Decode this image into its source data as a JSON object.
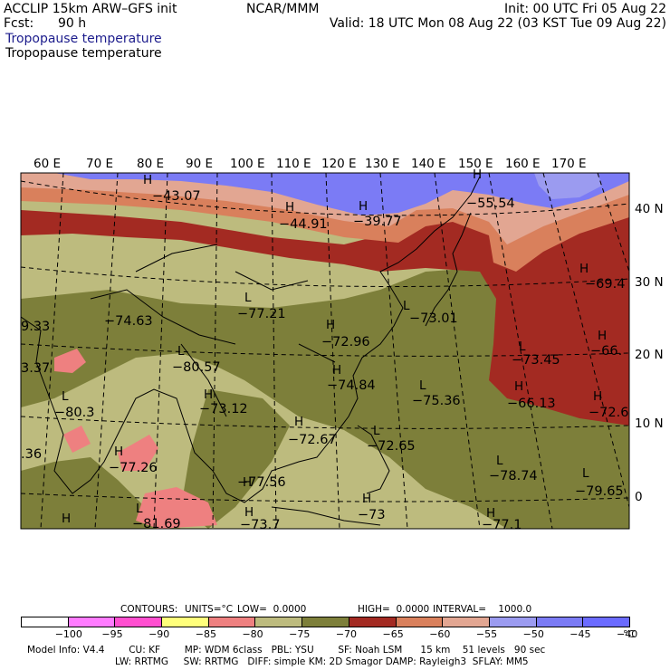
{
  "header": {
    "title_left": "ACCLIP 15km ARW–GFS init",
    "fcst_label": "Fcst:",
    "fcst_value": "90 h",
    "center": "NCAR/MMM",
    "init": "Init: 00 UTC Fri 05 Aug 22",
    "valid": "Valid: 18 UTC Mon 08 Aug 22 (03 KST Tue 09 Aug 22)",
    "field_title_1": "Tropopause temperature",
    "field_title_2": "Tropopause temperature"
  },
  "map": {
    "lon_labels": [
      "60 E",
      "70 E",
      "80 E",
      "90 E",
      "100 E",
      "110 E",
      "120 E",
      "130 E",
      "140 E",
      "150 E",
      "160 E",
      "170 E"
    ],
    "lat_labels": [
      "40 N",
      "30 N",
      "20 N",
      "10 N",
      "0"
    ],
    "colors": {
      "band_lt_blue": "#9b9bf0",
      "band_blue": "#7b7bf5",
      "band_pink": "#e2a692",
      "band_orange": "#d9805c",
      "band_dark_red": "#a32a22",
      "band_olive": "#7d7f3a",
      "band_khaki": "#bdbb7e",
      "band_salmon": "#ee8080"
    },
    "markers": [
      {
        "sym": "H",
        "value": "−43.07"
      },
      {
        "sym": "H",
        "value": "−44.91"
      },
      {
        "sym": "H",
        "value": "−39.77"
      },
      {
        "sym": "H",
        "value": "−55.54"
      },
      {
        "sym": "H",
        "value": "−69.4"
      },
      {
        "sym": "L",
        "value": "−77.21"
      },
      {
        "sym": "",
        "value": "−74.63"
      },
      {
        "sym": "H",
        "value": "−72.96"
      },
      {
        "sym": "L",
        "value": "−73.01"
      },
      {
        "sym": "L",
        "value": "−73.45"
      },
      {
        "sym": "H",
        "value": "−66."
      },
      {
        "sym": "L",
        "value": "−80.57"
      },
      {
        "sym": "H",
        "value": "−74.84"
      },
      {
        "sym": "L",
        "value": "−75.36"
      },
      {
        "sym": "H",
        "value": "−66.13"
      },
      {
        "sym": "H",
        "value": "−72.6"
      },
      {
        "sym": "L",
        "value": "−80.3"
      },
      {
        "sym": "H",
        "value": "−73.12"
      },
      {
        "sym": "H",
        "value": "−72.67"
      },
      {
        "sym": "L",
        "value": "−72.65"
      },
      {
        "sym": "H",
        "value": "−77.26"
      },
      {
        "sym": "L",
        "value": "−78.74"
      },
      {
        "sym": "L",
        "value": "−79.65"
      },
      {
        "sym": "H",
        "value": "−77.56"
      },
      {
        "sym": "H",
        "value": "−73"
      },
      {
        "sym": "L",
        "value": "−81.69"
      },
      {
        "sym": "H",
        "value": "−73.7"
      },
      {
        "sym": "H",
        "value": "−77.1"
      },
      {
        "sym": "",
        "value": "9.33"
      },
      {
        "sym": "",
        "value": "3.37"
      },
      {
        "sym": "",
        "value": ".36"
      },
      {
        "sym": "H",
        "value": ""
      }
    ]
  },
  "contours_line": {
    "contours": "CONTOURS:",
    "units": "UNITS=°C",
    "low": "LOW=  0.0000",
    "high": "HIGH=  0.0000",
    "interval": "INTERVAL=    1000.0"
  },
  "colorbar": {
    "colors": [
      "#ffffff",
      "#ff7bff",
      "#ff4fd0",
      "#ffff7b",
      "#ee8080",
      "#bdbb7e",
      "#7d7f3a",
      "#a32a22",
      "#d9805c",
      "#e2a692",
      "#9b9bf0",
      "#7b7bf5",
      "#6b6bff"
    ],
    "labels": [
      "−100",
      "−95",
      "−90",
      "−85",
      "−80",
      "−75",
      "−70",
      "−65",
      "−60",
      "−55",
      "−50",
      "−45",
      "−40"
    ],
    "unit": "°C"
  },
  "model_info": {
    "line1": "Model Info: V4.4        CU: KF        MP: WDM 6class   PBL: YSU        SF: Noah LSM      15 km    51 levels   90 sec",
    "line2": "LW: RRTMG     SW: RRTMG   DIFF: simple KM: 2D Smagor DAMP: Rayleigh3  SFLAY: MM5"
  }
}
